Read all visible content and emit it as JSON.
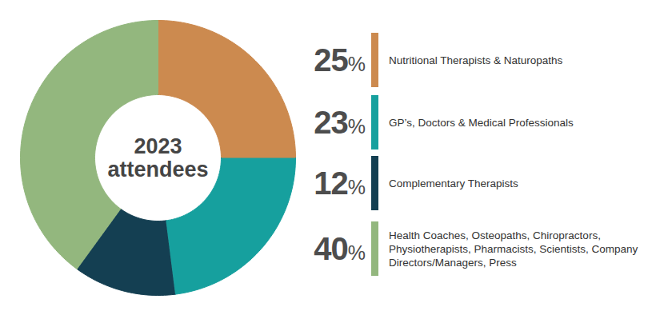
{
  "chart_data": {
    "type": "donut",
    "title": "2023 attendees",
    "categories": [
      "Nutritional Therapists & Naturopaths",
      "GP’s, Doctors & Medical Professionals",
      "Complementary Therapists",
      "Health Coaches, Osteopaths, Chiropractors, Physiotherapists, Pharmacists, Scientists, Company Directors/Managers, Press"
    ],
    "values": [
      25,
      23,
      12,
      40
    ],
    "value_labels": [
      "25%",
      "23%",
      "12%",
      "40%"
    ],
    "colors": [
      "#cc8a4f",
      "#16a09e",
      "#143f52",
      "#93b77e"
    ]
  }
}
